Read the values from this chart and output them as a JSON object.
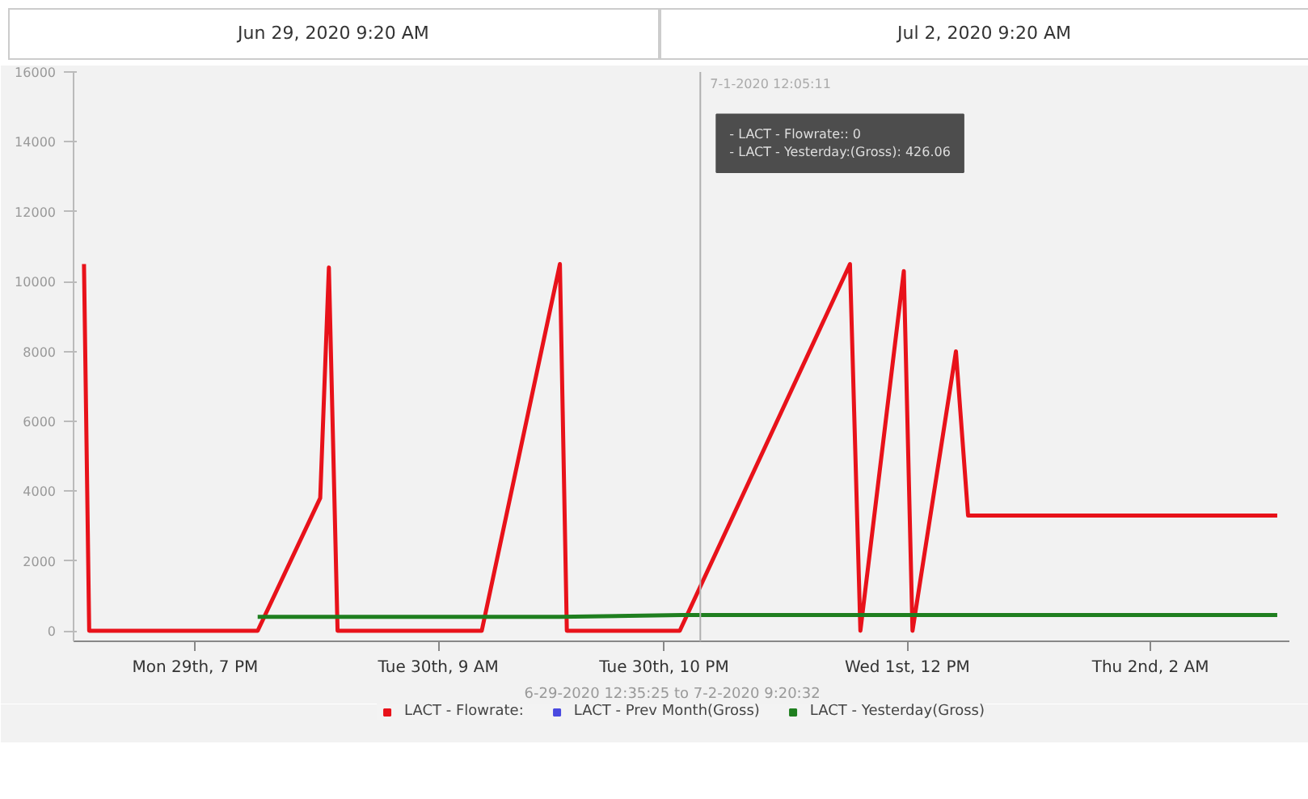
{
  "chart_data": {
    "type": "line",
    "xlim": [
      "2020-06-29T12:00",
      "2020-07-02T10:00"
    ],
    "ylim": [
      -300,
      16000
    ],
    "xticks": [
      {
        "value": "2020-06-29T19:00",
        "label": "Mon 29th, 7 PM"
      },
      {
        "value": "2020-06-30T09:00",
        "label": "Tue 30th, 9 AM"
      },
      {
        "value": "2020-06-30T22:00",
        "label": "Tue 30th, 10 PM"
      },
      {
        "value": "2020-07-01T12:00",
        "label": "Wed 1st, 12 PM"
      },
      {
        "value": "2020-07-02T02:00",
        "label": "Thu 2nd, 2 AM"
      }
    ],
    "yticks": [
      0,
      2000,
      4000,
      6000,
      8000,
      10000,
      12000,
      14000,
      16000
    ],
    "series": [
      {
        "name": "LACT - Flowrate:",
        "color": "#e8121a",
        "x": [
          "2020-06-29T12:36",
          "2020-06-29T12:54",
          "2020-06-29T22:36",
          "2020-06-30T02:12",
          "2020-06-30T02:42",
          "2020-06-30T03:12",
          "2020-06-30T11:30",
          "2020-06-30T16:00",
          "2020-06-30T16:24",
          "2020-06-30T22:54",
          "2020-07-01T08:42",
          "2020-07-01T09:18",
          "2020-07-01T11:48",
          "2020-07-01T12:18",
          "2020-07-01T14:48",
          "2020-07-01T15:30",
          "2020-07-02T09:18"
        ],
        "values": [
          10500,
          0,
          0,
          3800,
          10400,
          0,
          0,
          10500,
          0,
          0,
          10500,
          0,
          10300,
          0,
          8000,
          3300,
          3300
        ]
      },
      {
        "name": "LACT - Prev Month(Gross)",
        "color": "#4a4ae0"
      },
      {
        "name": "LACT - Yesterday(Gross)",
        "color": "#1f7f1f",
        "x": [
          "2020-06-29T22:36",
          "2020-06-30T16:00",
          "2020-06-30T23:00",
          "2020-07-02T09:18"
        ],
        "values": [
          400,
          400,
          450,
          450
        ]
      }
    ],
    "ref_lines": [
      {
        "axis": "x",
        "value": "2020-07-01T00:05",
        "label": "7-1-2020 12:05:11",
        "color": "#b0b0b0"
      }
    ],
    "annotations": [
      "Jun 29, 2020 9:20 AM",
      "Jul 2, 2020 9:20 AM",
      "- LACT - Flowrate:: 0",
      "- LACT - Yesterday:(Gross): 426.06",
      "6-29-2020  12:35:25  to  7-2-2020  9:20:32"
    ],
    "grid": false,
    "legend": "bottom",
    "marker": "none",
    "line_style": "solid"
  }
}
